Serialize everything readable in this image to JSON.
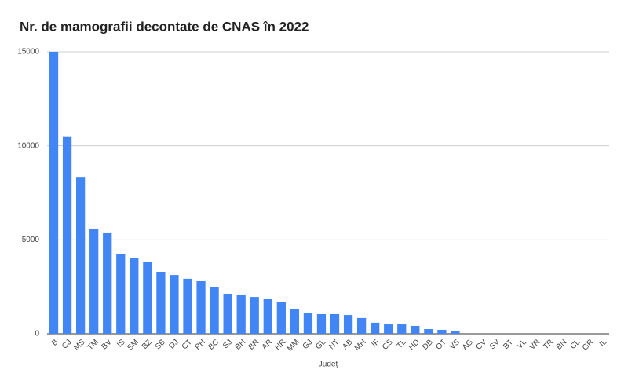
{
  "chart_data": {
    "type": "bar",
    "title": "Nr. de mamografii decontate de CNAS în 2022",
    "x_label": "Județ",
    "categories": [
      "B",
      "CJ",
      "MS",
      "TM",
      "BV",
      "IS",
      "SM",
      "BZ",
      "SB",
      "DJ",
      "CT",
      "PH",
      "BC",
      "SJ",
      "BH",
      "BR",
      "AR",
      "HR",
      "MM",
      "GJ",
      "GL",
      "NT",
      "AB",
      "MH",
      "IF",
      "CS",
      "TL",
      "HD",
      "DB",
      "OT",
      "VS",
      "AG",
      "CV",
      "SV",
      "BT",
      "VL",
      "VR",
      "TR",
      "BN",
      "CL",
      "GR",
      "IL"
    ],
    "values": [
      15000,
      10500,
      8350,
      5600,
      5350,
      4260,
      4010,
      3840,
      3300,
      3130,
      2930,
      2800,
      2470,
      2130,
      2090,
      1960,
      1840,
      1710,
      1300,
      1090,
      1045,
      1045,
      1000,
      840,
      590,
      500,
      500,
      420,
      250,
      210,
      125,
      0,
      0,
      0,
      0,
      0,
      0,
      0,
      0,
      0,
      0,
      0
    ],
    "color": "#4285f4",
    "ylim": [
      0,
      15000
    ],
    "yticks": [
      0,
      5000,
      10000,
      15000
    ],
    "grid": true
  }
}
